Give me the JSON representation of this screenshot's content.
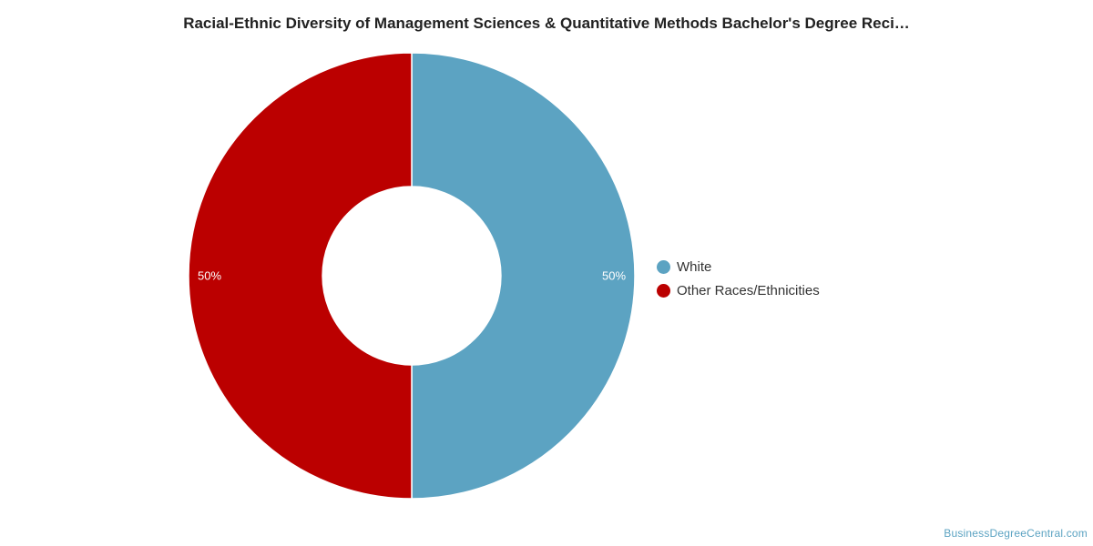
{
  "chart_data": {
    "type": "pie",
    "donut": true,
    "title": "Racial-Ethnic Diversity of Management Sciences & Quantitative Methods Bachelor's Degree Reci…",
    "slices": [
      {
        "name": "White",
        "value": 50,
        "label": "50%",
        "color": "#5ca3c2"
      },
      {
        "name": "Other Races/Ethnicities",
        "value": 50,
        "label": "50%",
        "color": "#bb0000"
      }
    ],
    "legend_position": "right"
  },
  "watermark": "BusinessDegreeCentral.com"
}
